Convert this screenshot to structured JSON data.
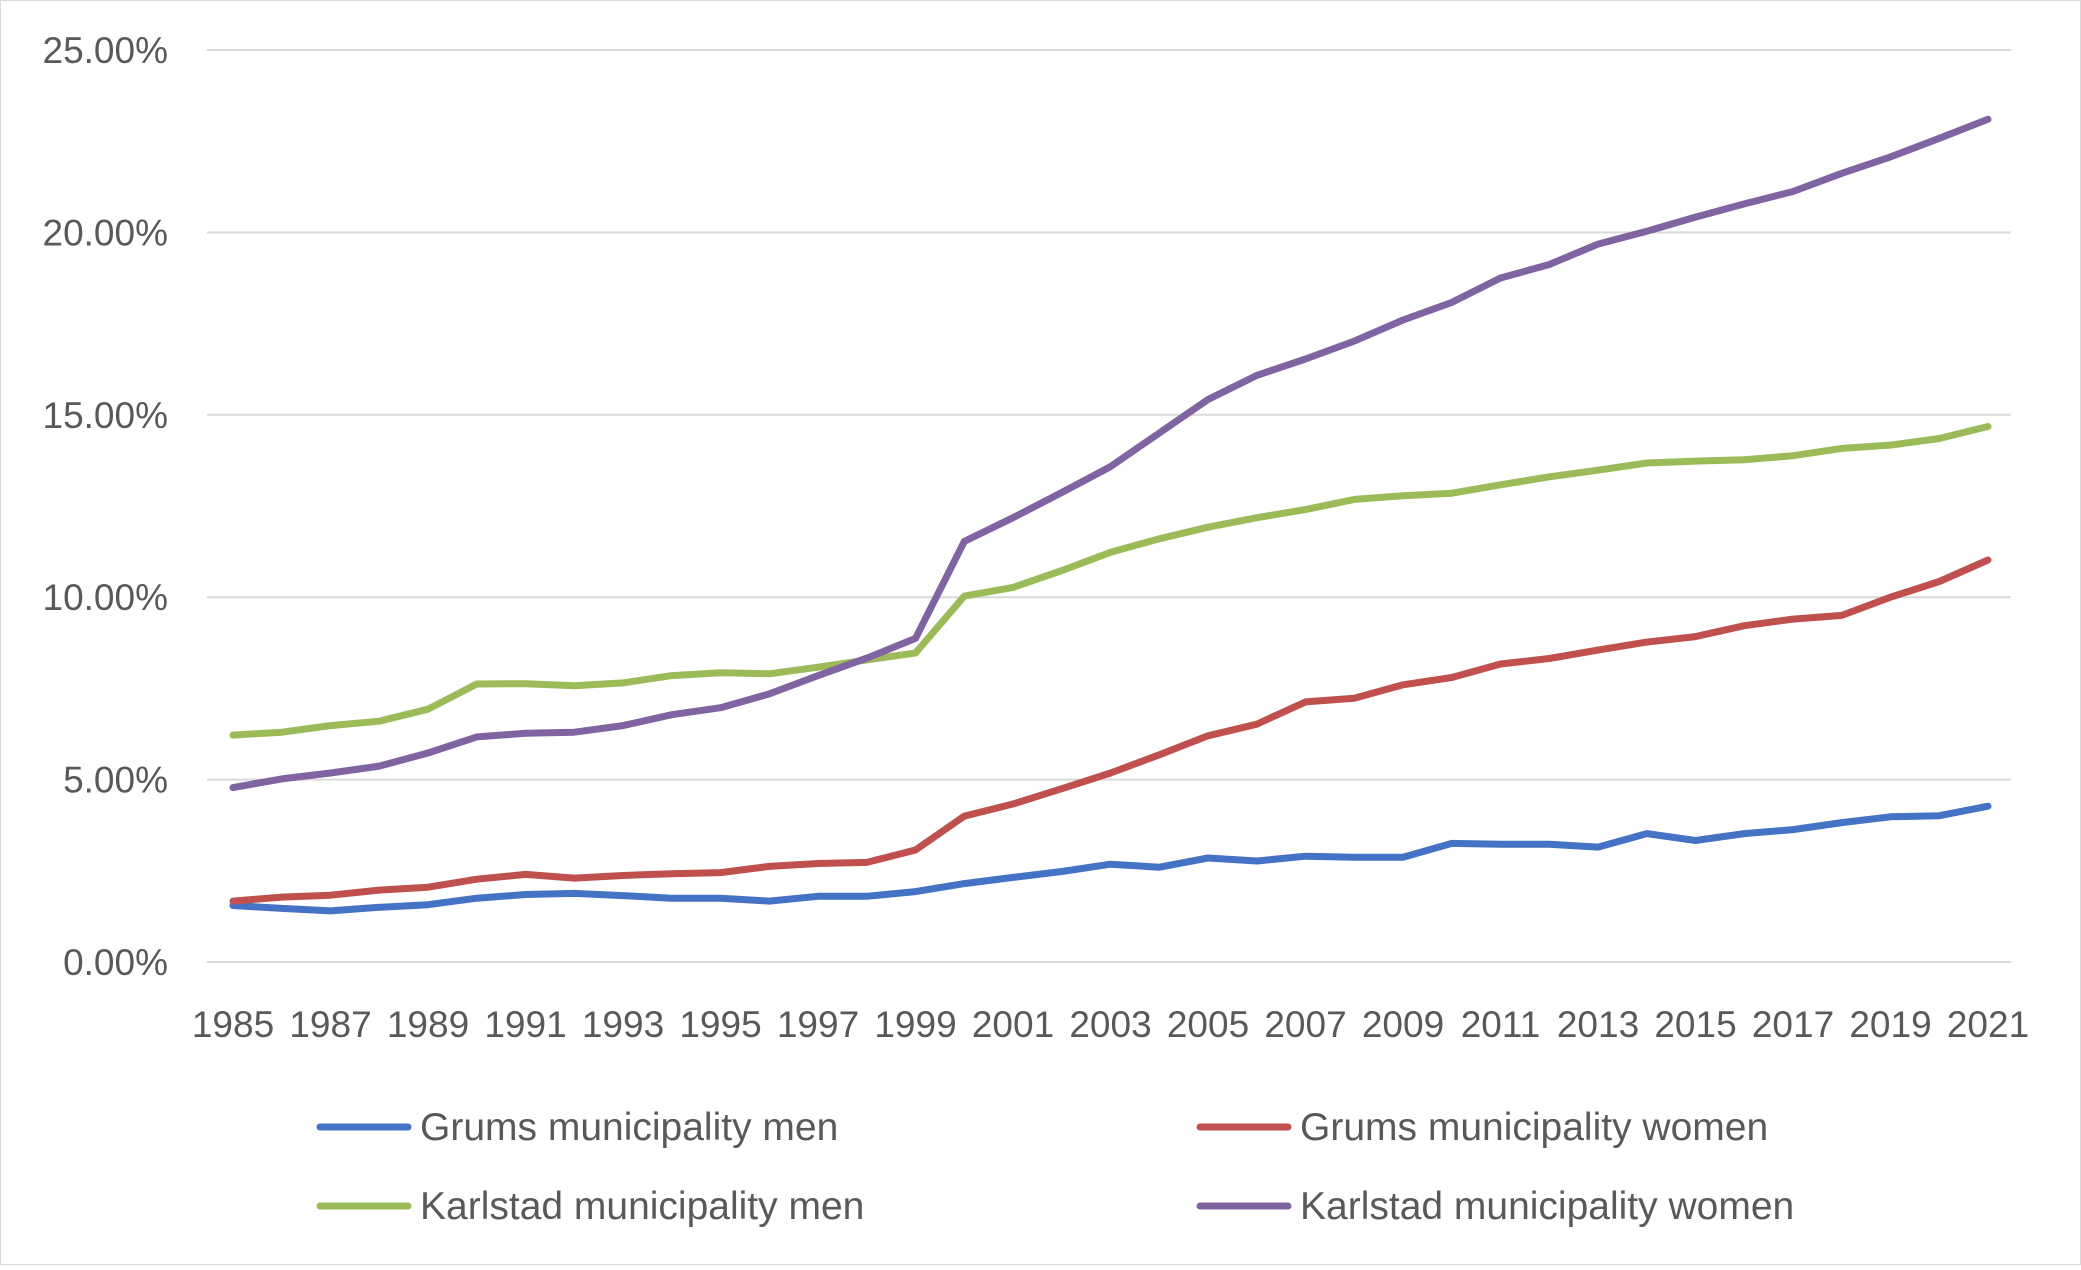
{
  "chart_data": {
    "type": "line",
    "title": "",
    "xlabel": "",
    "ylabel": "",
    "x": [
      1985,
      1986,
      1987,
      1988,
      1989,
      1990,
      1991,
      1992,
      1993,
      1994,
      1995,
      1996,
      1997,
      1998,
      1999,
      2000,
      2001,
      2002,
      2003,
      2004,
      2005,
      2006,
      2007,
      2008,
      2009,
      2010,
      2011,
      2012,
      2013,
      2014,
      2015,
      2016,
      2017,
      2018,
      2019,
      2020,
      2021
    ],
    "x_tick_labels": [
      "1985",
      "1987",
      "1989",
      "1991",
      "1993",
      "1995",
      "1997",
      "1999",
      "2001",
      "2003",
      "2005",
      "2007",
      "2009",
      "2011",
      "2013",
      "2015",
      "2017",
      "2019",
      "2021"
    ],
    "y_tick_values": [
      0,
      5,
      10,
      15,
      20,
      25
    ],
    "y_tick_labels": [
      "0.00%",
      "5.00%",
      "10.00%",
      "15.00%",
      "20.00%",
      "25.00%"
    ],
    "ylim": [
      0,
      25
    ],
    "grid": true,
    "legend_position": "bottom",
    "series": [
      {
        "name": "Grums municipality men",
        "color": "#4472C4",
        "values": [
          1.55,
          1.47,
          1.4,
          1.5,
          1.57,
          1.75,
          1.85,
          1.88,
          1.82,
          1.75,
          1.75,
          1.67,
          1.8,
          1.8,
          1.93,
          2.15,
          2.32,
          2.48,
          2.68,
          2.6,
          2.85,
          2.77,
          2.9,
          2.87,
          2.87,
          3.25,
          3.23,
          3.23,
          3.15,
          3.52,
          3.33,
          3.52,
          3.63,
          3.82,
          3.98,
          4.01,
          4.27
        ]
      },
      {
        "name": "Grums municipality women",
        "color": "#C0504D",
        "values": [
          1.67,
          1.78,
          1.83,
          1.97,
          2.05,
          2.27,
          2.4,
          2.3,
          2.37,
          2.42,
          2.45,
          2.62,
          2.7,
          2.73,
          3.07,
          4.0,
          4.33,
          4.75,
          5.18,
          5.68,
          6.2,
          6.52,
          7.13,
          7.23,
          7.6,
          7.8,
          8.17,
          8.32,
          8.55,
          8.77,
          8.92,
          9.22,
          9.4,
          9.5,
          10.0,
          10.43,
          11.02
        ]
      },
      {
        "name": "Karlstad municipality men",
        "color": "#9BBB59",
        "values": [
          6.22,
          6.3,
          6.48,
          6.6,
          6.93,
          7.62,
          7.63,
          7.57,
          7.65,
          7.85,
          7.93,
          7.9,
          8.08,
          8.28,
          8.47,
          10.03,
          10.27,
          10.73,
          11.23,
          11.6,
          11.92,
          12.18,
          12.4,
          12.68,
          12.78,
          12.85,
          13.08,
          13.3,
          13.48,
          13.68,
          13.73,
          13.77,
          13.88,
          14.08,
          14.17,
          14.35,
          14.68
        ]
      },
      {
        "name": "Karlstad municipality women",
        "color": "#8064A2",
        "values": [
          4.78,
          5.02,
          5.18,
          5.37,
          5.73,
          6.17,
          6.27,
          6.3,
          6.48,
          6.78,
          6.97,
          7.35,
          7.85,
          8.33,
          8.87,
          11.53,
          12.18,
          12.87,
          13.58,
          14.5,
          15.42,
          16.08,
          16.53,
          17.02,
          17.6,
          18.08,
          18.75,
          19.12,
          19.68,
          20.03,
          20.42,
          20.78,
          21.12,
          21.62,
          22.07,
          22.58,
          23.1
        ]
      }
    ]
  }
}
